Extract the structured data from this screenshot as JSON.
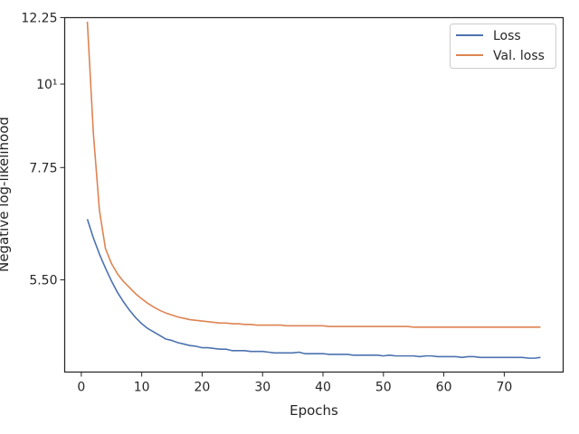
{
  "chart_data": {
    "type": "line",
    "title": "",
    "xlabel": "Epochs",
    "ylabel": "Negative log-likelihood",
    "y_scale": "log",
    "xlim": [
      -2.75,
      79.75
    ],
    "ylim": [
      4.15,
      12.25
    ],
    "xticks": [
      0,
      10,
      20,
      30,
      40,
      50,
      60,
      70
    ],
    "xtick_labels": [
      "0",
      "10",
      "20",
      "30",
      "40",
      "50",
      "60",
      "70"
    ],
    "yticks": [
      5.5,
      7.75,
      10,
      12.25
    ],
    "ytick_labels": [
      "5.50",
      "7.75",
      "10¹",
      "12.25"
    ],
    "grid": false,
    "legend_position": "top-right",
    "colors": {
      "loss": "#4c72b0",
      "val_loss": "#dd8452"
    },
    "series": [
      {
        "name": "Loss",
        "x": [
          1,
          2,
          3,
          4,
          5,
          6,
          7,
          8,
          9,
          10,
          11,
          12,
          13,
          14,
          15,
          16,
          17,
          18,
          19,
          20,
          21,
          22,
          23,
          24,
          25,
          26,
          27,
          28,
          29,
          30,
          31,
          32,
          33,
          34,
          35,
          36,
          37,
          38,
          39,
          40,
          41,
          42,
          43,
          44,
          45,
          46,
          47,
          48,
          49,
          50,
          51,
          52,
          53,
          54,
          55,
          56,
          57,
          58,
          59,
          60,
          61,
          62,
          63,
          64,
          65,
          66,
          67,
          68,
          69,
          70,
          71,
          72,
          73,
          74,
          75,
          76
        ],
        "values": [
          6.62,
          6.25,
          5.95,
          5.7,
          5.48,
          5.29,
          5.14,
          5.01,
          4.9,
          4.81,
          4.74,
          4.69,
          4.64,
          4.59,
          4.57,
          4.54,
          4.52,
          4.5,
          4.49,
          4.47,
          4.47,
          4.46,
          4.45,
          4.45,
          4.43,
          4.43,
          4.43,
          4.42,
          4.42,
          4.42,
          4.41,
          4.4,
          4.4,
          4.4,
          4.4,
          4.41,
          4.39,
          4.39,
          4.39,
          4.39,
          4.38,
          4.38,
          4.38,
          4.38,
          4.37,
          4.37,
          4.37,
          4.37,
          4.37,
          4.36,
          4.37,
          4.36,
          4.36,
          4.36,
          4.36,
          4.35,
          4.36,
          4.36,
          4.35,
          4.35,
          4.35,
          4.35,
          4.34,
          4.35,
          4.35,
          4.34,
          4.34,
          4.34,
          4.34,
          4.34,
          4.34,
          4.34,
          4.34,
          4.33,
          4.33,
          4.34
        ]
      },
      {
        "name": "Val. loss",
        "x": [
          1,
          2,
          3,
          4,
          5,
          6,
          7,
          8,
          9,
          10,
          11,
          12,
          13,
          14,
          15,
          16,
          17,
          18,
          19,
          20,
          21,
          22,
          23,
          24,
          25,
          26,
          27,
          28,
          29,
          30,
          31,
          32,
          33,
          34,
          35,
          36,
          37,
          38,
          39,
          40,
          41,
          42,
          43,
          44,
          45,
          46,
          47,
          48,
          49,
          50,
          51,
          52,
          53,
          54,
          55,
          56,
          57,
          58,
          59,
          60,
          61,
          62,
          63,
          64,
          65,
          66,
          67,
          68,
          69,
          70,
          71,
          72,
          73,
          74,
          75,
          76
        ],
        "values": [
          12.1,
          8.6,
          6.8,
          6.05,
          5.78,
          5.6,
          5.47,
          5.37,
          5.27,
          5.19,
          5.12,
          5.06,
          5.01,
          4.97,
          4.94,
          4.91,
          4.89,
          4.87,
          4.86,
          4.85,
          4.84,
          4.83,
          4.82,
          4.82,
          4.81,
          4.81,
          4.8,
          4.8,
          4.79,
          4.79,
          4.79,
          4.79,
          4.79,
          4.78,
          4.78,
          4.78,
          4.78,
          4.78,
          4.78,
          4.78,
          4.77,
          4.77,
          4.77,
          4.77,
          4.77,
          4.77,
          4.77,
          4.77,
          4.77,
          4.77,
          4.77,
          4.77,
          4.77,
          4.77,
          4.76,
          4.76,
          4.76,
          4.76,
          4.76,
          4.76,
          4.76,
          4.76,
          4.76,
          4.76,
          4.76,
          4.76,
          4.76,
          4.76,
          4.76,
          4.76,
          4.76,
          4.76,
          4.76,
          4.76,
          4.76,
          4.76
        ]
      }
    ]
  }
}
